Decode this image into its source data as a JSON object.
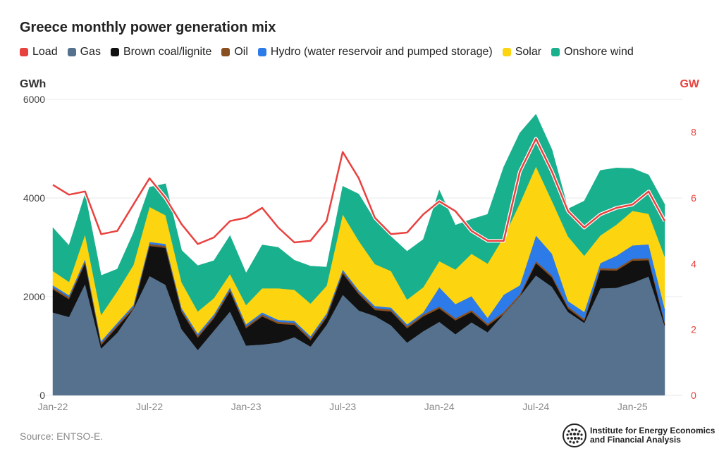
{
  "chart_data": {
    "type": "area",
    "title": "Greece monthly power generation mix",
    "ylabel_left": "GWh",
    "ylabel_right": "GW",
    "ylim_left": [
      0,
      6000
    ],
    "ylim_right": [
      0,
      9
    ],
    "yticks_left": [
      "0",
      "2000",
      "4000",
      "6000"
    ],
    "yticks_right": [
      "0",
      "2",
      "4",
      "6",
      "8"
    ],
    "xtick_labels": [
      "Jan-22",
      "Jul-22",
      "Jan-23",
      "Jul-23",
      "Jan-24",
      "Jul-24",
      "Jan-25"
    ],
    "x": [
      "Jan-22",
      "Feb-22",
      "Mar-22",
      "Apr-22",
      "May-22",
      "Jun-22",
      "Jul-22",
      "Aug-22",
      "Sep-22",
      "Oct-22",
      "Nov-22",
      "Dec-22",
      "Jan-23",
      "Feb-23",
      "Mar-23",
      "Apr-23",
      "May-23",
      "Jun-23",
      "Jul-23",
      "Aug-23",
      "Sep-23",
      "Oct-23",
      "Nov-23",
      "Dec-23",
      "Jan-24",
      "Feb-24",
      "Mar-24",
      "Apr-24",
      "May-24",
      "Jun-24",
      "Jul-24",
      "Aug-24",
      "Sep-24",
      "Oct-24",
      "Nov-24",
      "Dec-24",
      "Jan-25",
      "Feb-25",
      "Mar-25"
    ],
    "series": [
      {
        "name": "Gas",
        "color": "#55718d",
        "values": [
          1680,
          1590,
          2260,
          950,
          1270,
          1750,
          2420,
          2240,
          1340,
          920,
          1310,
          1700,
          1010,
          1030,
          1070,
          1180,
          990,
          1430,
          2040,
          1720,
          1610,
          1420,
          1070,
          1300,
          1490,
          1240,
          1480,
          1280,
          1650,
          2010,
          2430,
          2200,
          1690,
          1470,
          2170,
          2180,
          2280,
          2410,
          1410
        ]
      },
      {
        "name": "Brown coal/lignite",
        "color": "#111111",
        "values": [
          470,
          360,
          420,
          70,
          120,
          0,
          610,
          750,
          350,
          250,
          250,
          410,
          350,
          570,
          380,
          250,
          130,
          150,
          430,
          330,
          120,
          280,
          290,
          300,
          270,
          280,
          210,
          130,
          0,
          0,
          250,
          190,
          70,
          40,
          370,
          350,
          450,
          330,
          40
        ]
      },
      {
        "name": "Oil",
        "color": "#8a4f1e",
        "values": [
          40,
          40,
          40,
          40,
          40,
          40,
          40,
          40,
          40,
          40,
          40,
          40,
          40,
          40,
          40,
          40,
          40,
          40,
          40,
          40,
          40,
          40,
          40,
          40,
          40,
          40,
          40,
          40,
          40,
          40,
          40,
          40,
          40,
          40,
          40,
          40,
          40,
          40,
          40
        ]
      },
      {
        "name": "Hydro (water reservoir and pumped storage)",
        "color": "#2d7be8",
        "values": [
          40,
          40,
          40,
          40,
          40,
          40,
          40,
          40,
          40,
          40,
          40,
          40,
          40,
          40,
          40,
          40,
          40,
          40,
          40,
          40,
          40,
          40,
          40,
          40,
          390,
          290,
          280,
          120,
          350,
          180,
          520,
          440,
          110,
          140,
          100,
          260,
          270,
          280,
          270
        ]
      },
      {
        "name": "Solar",
        "color": "#fcd410",
        "values": [
          290,
          270,
          500,
          530,
          640,
          810,
          710,
          580,
          520,
          450,
          330,
          270,
          390,
          490,
          640,
          630,
          660,
          560,
          1120,
          1000,
          850,
          740,
          500,
          510,
          530,
          700,
          860,
          1100,
          1170,
          1660,
          1400,
          1070,
          1310,
          1140,
          560,
          630,
          700,
          620,
          1050
        ]
      },
      {
        "name": "Onshore wind",
        "color": "#19b08e",
        "values": [
          880,
          740,
          820,
          800,
          450,
          650,
          400,
          640,
          650,
          930,
          760,
          780,
          650,
          880,
          830,
          600,
          760,
          380,
          570,
          950,
          890,
          700,
          980,
          970,
          1440,
          900,
          700,
          1000,
          1420,
          1430,
          1060,
          1040,
          560,
          1110,
          1320,
          1150,
          860,
          790,
          1060
        ]
      }
    ],
    "load": {
      "name": "Load",
      "color": "#e8423f",
      "axis": "right",
      "values": [
        6.4,
        6.1,
        6.2,
        4.9,
        5.0,
        5.8,
        6.6,
        6.0,
        5.2,
        4.6,
        4.8,
        5.3,
        5.4,
        5.7,
        5.1,
        4.65,
        4.7,
        5.3,
        7.4,
        6.6,
        5.4,
        4.9,
        4.95,
        5.5,
        5.9,
        5.6,
        5.0,
        4.7,
        4.7,
        6.8,
        7.8,
        6.8,
        5.6,
        5.1,
        5.5,
        5.7,
        5.8,
        6.2,
        5.3
      ]
    },
    "legend_placement": "top",
    "grid": true
  },
  "legend": [
    {
      "label": "Load",
      "color": "#e8423f"
    },
    {
      "label": "Gas",
      "color": "#55718d"
    },
    {
      "label": "Brown coal/lignite",
      "color": "#111111"
    },
    {
      "label": "Oil",
      "color": "#8a4f1e"
    },
    {
      "label": "Hydro (water reservoir and pumped storage)",
      "color": "#2d7be8"
    },
    {
      "label": "Solar",
      "color": "#fcd410"
    },
    {
      "label": "Onshore wind",
      "color": "#19b08e"
    }
  ],
  "source": "Source: ENTSO-E.",
  "logo": {
    "line1": "Institute for Energy Economics",
    "line2": "and Financial Analysis",
    "icon": "globe-icon"
  }
}
